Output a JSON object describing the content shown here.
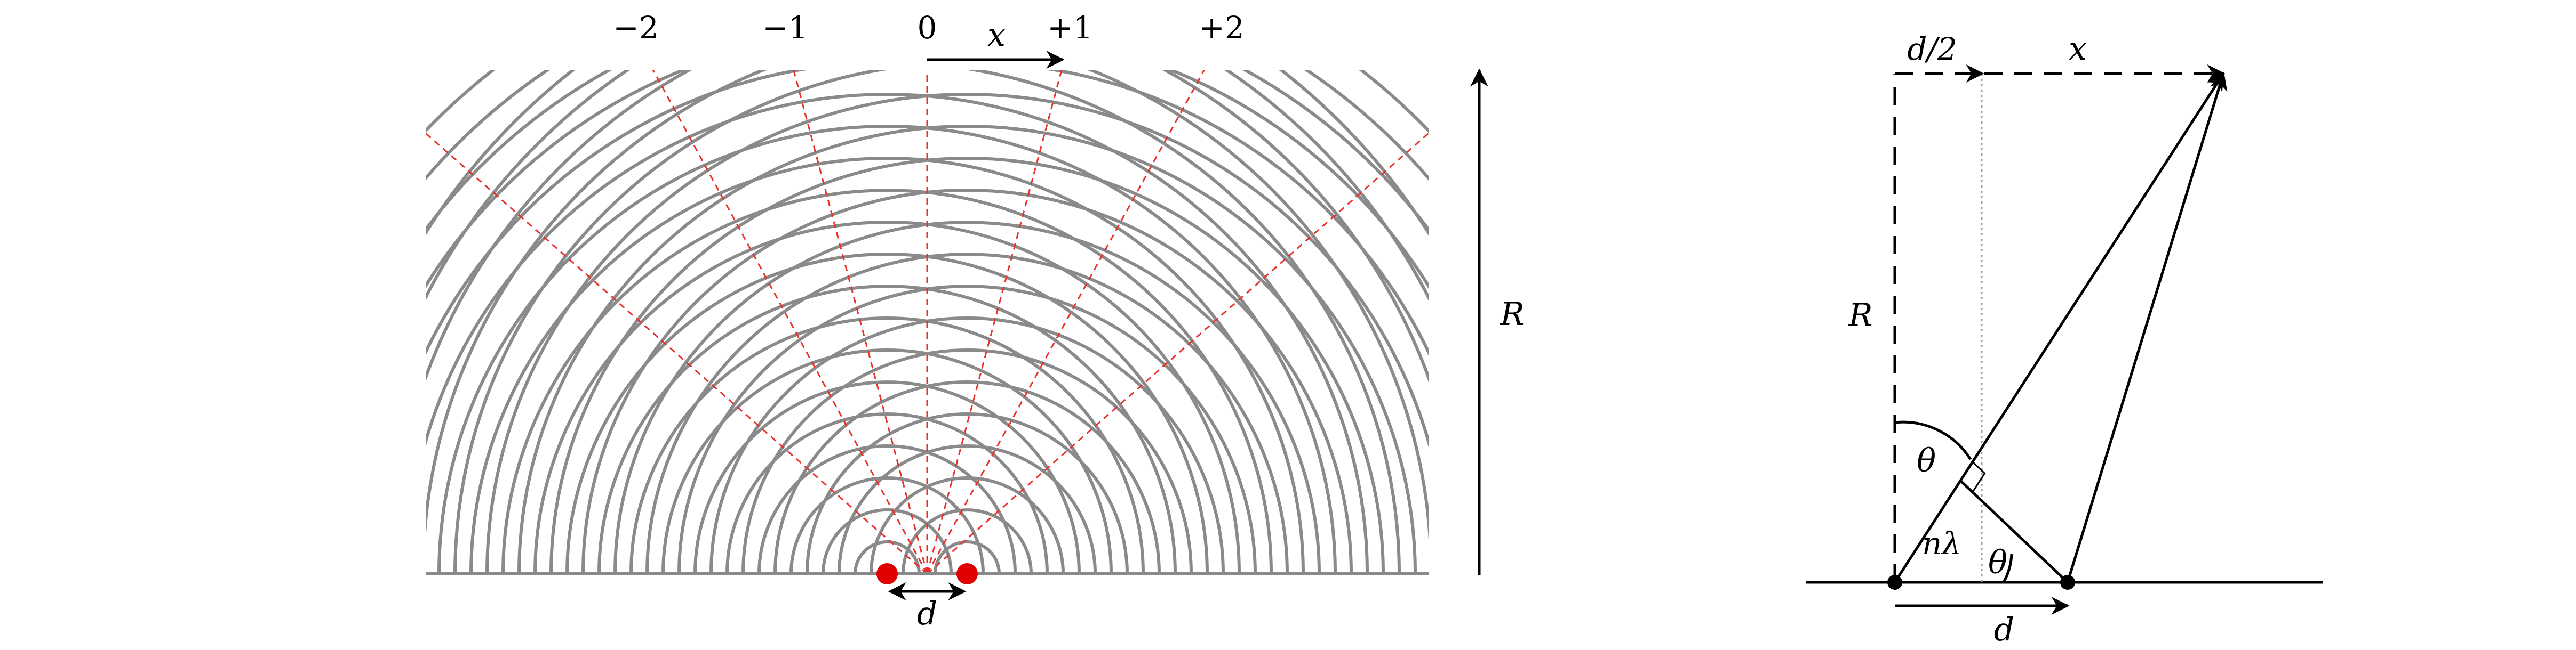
{
  "left_panel": {
    "order_labels": [
      "−2",
      "−1",
      "0",
      "+1",
      "+2"
    ],
    "x_label": "x",
    "r_label": "R",
    "d_label": "d",
    "colors": {
      "wave": "#8a8a8a",
      "antinodal": "#e8302a",
      "source": "#e00000",
      "ink": "#000000"
    }
  },
  "right_panel": {
    "d_half_label": "d/2",
    "x_label": "x",
    "r_label": "R",
    "theta_top": "θ",
    "theta_bottom": "θ",
    "n_lambda": "nλ",
    "d_label": "d",
    "colors": {
      "ink": "#000000",
      "guide": "#9a9a9a"
    }
  }
}
